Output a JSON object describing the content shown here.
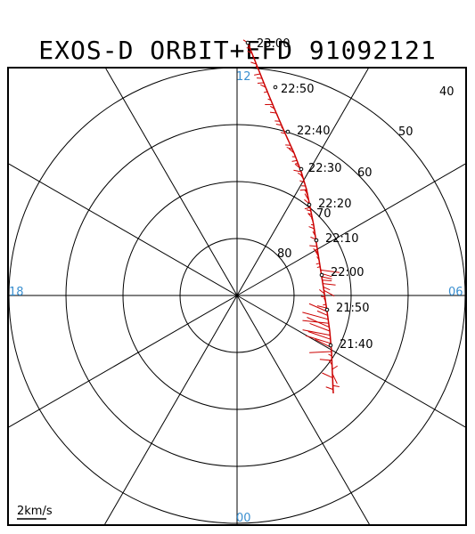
{
  "title": "EXOS-D ORBIT+EFD 91092121",
  "colors": {
    "frame": "#000000",
    "grid": "#000000",
    "orbit": "#cc0000",
    "hour_labels": "#3a8fd0",
    "text": "#000000"
  },
  "polar_plot": {
    "hour_labels": [
      "12",
      "18",
      "06",
      "00"
    ],
    "latitude_labels": [
      "40",
      "50",
      "60",
      "70",
      "80"
    ],
    "scale_label": "2km/s"
  },
  "orbit": {
    "time_labels": [
      "23:00",
      "22:50",
      "22:40",
      "22:30",
      "22:20",
      "22:10",
      "22:00",
      "21:50",
      "21:40"
    ]
  }
}
